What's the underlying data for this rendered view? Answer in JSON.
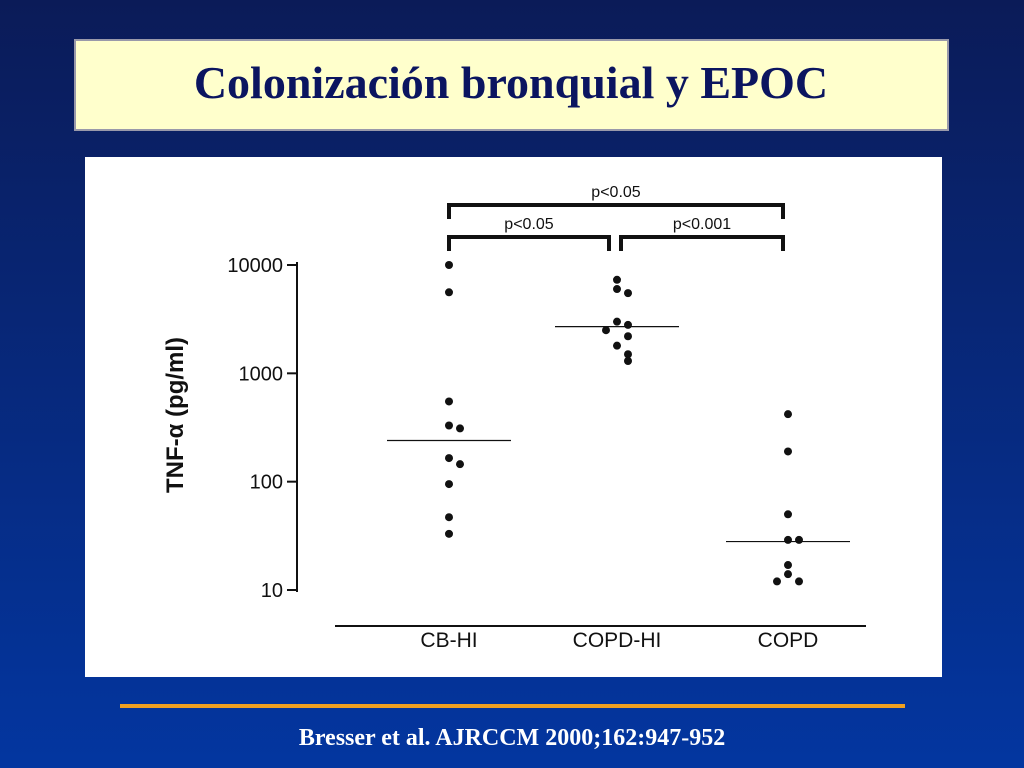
{
  "title": "Colonización bronquial y EPOC",
  "citation": "Bresser et al. AJRCCM 2000;162:947-952",
  "chart_data": {
    "type": "strip",
    "y_label": "TNF-α (pg/ml)",
    "categories": [
      "CB-HI",
      "COPD-HI",
      "COPD"
    ],
    "series": [
      {
        "values": [
          10000,
          5600,
          550,
          330,
          310,
          165,
          145,
          95,
          47,
          33
        ],
        "median": 240
      },
      {
        "values": [
          7300,
          6000,
          5500,
          3000,
          2800,
          2500,
          2200,
          1800,
          1500,
          1300
        ],
        "median": 2700
      },
      {
        "values": [
          420,
          190,
          50,
          29,
          29,
          17,
          14,
          12,
          12
        ],
        "median": 28
      }
    ],
    "color": "#111111",
    "log_scale": true,
    "ylim": [
      10,
      10000
    ],
    "yticks": [
      10,
      100,
      1000,
      10000
    ],
    "comparisons": [
      {
        "from": 0,
        "to": 2,
        "label": "p<0.05"
      },
      {
        "from": 0,
        "to": 1,
        "label": "p<0.05"
      },
      {
        "from": 1,
        "to": 2,
        "label": "p<0.001"
      }
    ]
  }
}
